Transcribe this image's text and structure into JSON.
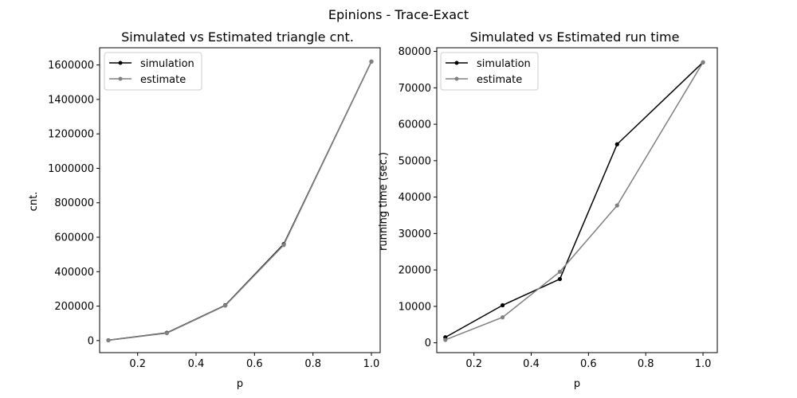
{
  "figure": {
    "suptitle": "Epinions - Trace-Exact"
  },
  "chart_data": [
    {
      "type": "line",
      "title": "Simulated vs Estimated triangle cnt.",
      "xlabel": "p",
      "ylabel": "cnt.",
      "xlim": [
        0.07,
        1.03
      ],
      "ylim": [
        -70000,
        1700000
      ],
      "xticks": [
        0.2,
        0.4,
        0.6,
        0.8,
        1.0
      ],
      "xtick_labels": [
        "0.2",
        "0.4",
        "0.6",
        "0.8",
        "1.0"
      ],
      "yticks": [
        0,
        200000,
        400000,
        600000,
        800000,
        1000000,
        1200000,
        1400000,
        1600000
      ],
      "ytick_labels": [
        "0",
        "200000",
        "400000",
        "600000",
        "800000",
        "1000000",
        "1200000",
        "1400000",
        "1600000"
      ],
      "grid": false,
      "legend": "top-left",
      "x": [
        0.1,
        0.3,
        0.5,
        0.7,
        1.0
      ],
      "series": [
        {
          "name": "simulation",
          "color": "#000000",
          "values": [
            2000,
            45000,
            205000,
            560000,
            1620000
          ]
        },
        {
          "name": "estimate",
          "color": "#808080",
          "values": [
            1500,
            43000,
            203000,
            555000,
            1620000
          ]
        }
      ]
    },
    {
      "type": "line",
      "title": "Simulated vs Estimated run time",
      "xlabel": "p",
      "ylabel": "running time (sec.)",
      "xlim": [
        0.07,
        1.05
      ],
      "ylim": [
        -2700,
        81000
      ],
      "xticks": [
        0.2,
        0.4,
        0.6,
        0.8,
        1.0
      ],
      "xtick_labels": [
        "0.2",
        "0.4",
        "0.6",
        "0.8",
        "1.0"
      ],
      "yticks": [
        0,
        10000,
        20000,
        30000,
        40000,
        50000,
        60000,
        70000,
        80000
      ],
      "ytick_labels": [
        "0",
        "10000",
        "20000",
        "30000",
        "40000",
        "50000",
        "60000",
        "70000",
        "80000"
      ],
      "grid": false,
      "legend": "top-left",
      "x": [
        0.1,
        0.3,
        0.5,
        0.7,
        1.0
      ],
      "series": [
        {
          "name": "simulation",
          "color": "#000000",
          "values": [
            1500,
            10300,
            17500,
            54500,
            77000
          ]
        },
        {
          "name": "estimate",
          "color": "#808080",
          "values": [
            800,
            7000,
            19500,
            37700,
            77000
          ]
        }
      ]
    }
  ]
}
